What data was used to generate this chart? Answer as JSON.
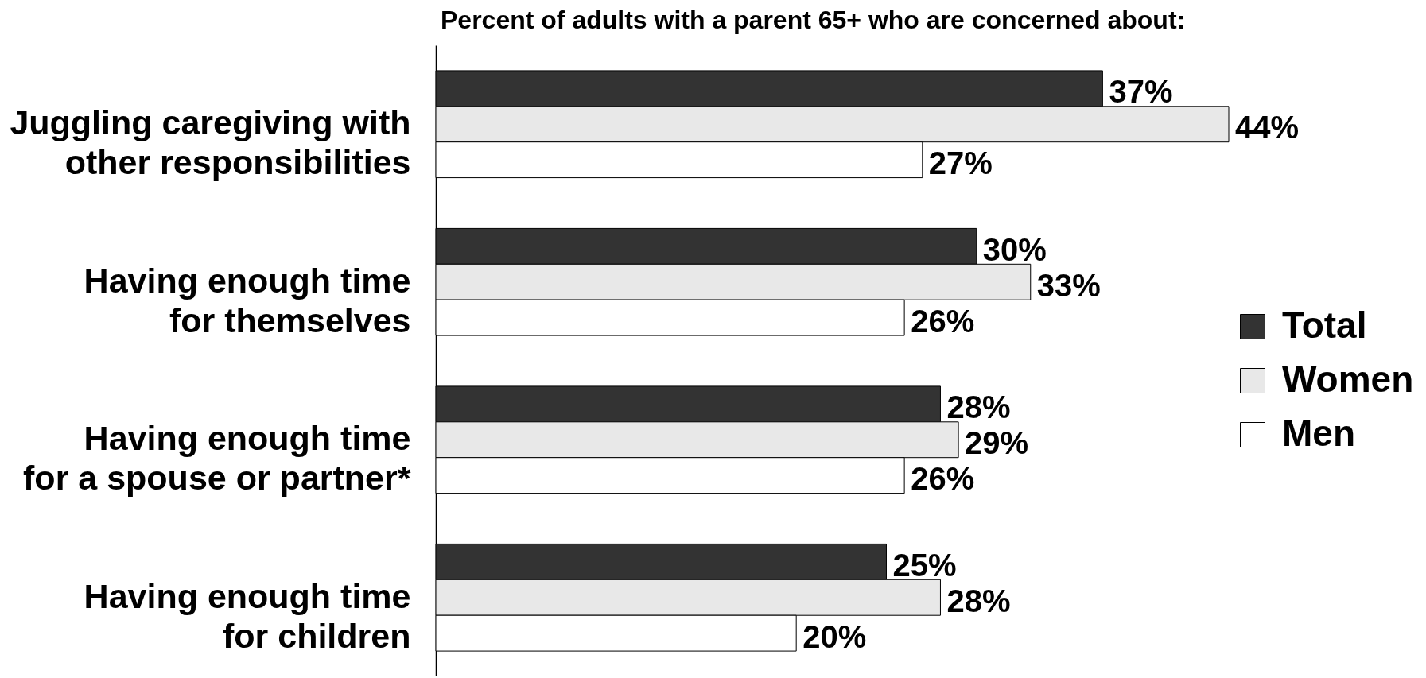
{
  "chart_data": {
    "type": "bar",
    "orientation": "horizontal",
    "title": "Percent of adults with a parent 65+ who are concerned about:",
    "categories": [
      "Juggling caregiving with\nother responsibilities",
      "Having enough time\nfor themselves",
      "Having enough time\nfor a spouse or partner*",
      "Having enough time\nfor children"
    ],
    "series": [
      {
        "name": "Total",
        "color": "#333333",
        "values": [
          37,
          30,
          28,
          25
        ],
        "value_labels": [
          "37%",
          "30%",
          "28%",
          "25%"
        ]
      },
      {
        "name": "Women",
        "color": "#e8e8e8",
        "values": [
          44,
          33,
          29,
          28
        ],
        "value_labels": [
          "44%",
          "33%",
          "29%",
          "28%"
        ]
      },
      {
        "name": "Men",
        "color": "#ffffff",
        "values": [
          27,
          26,
          26,
          20
        ],
        "value_labels": [
          "27%",
          "26%",
          "26%",
          "20%"
        ]
      }
    ],
    "legend": "right"
  }
}
